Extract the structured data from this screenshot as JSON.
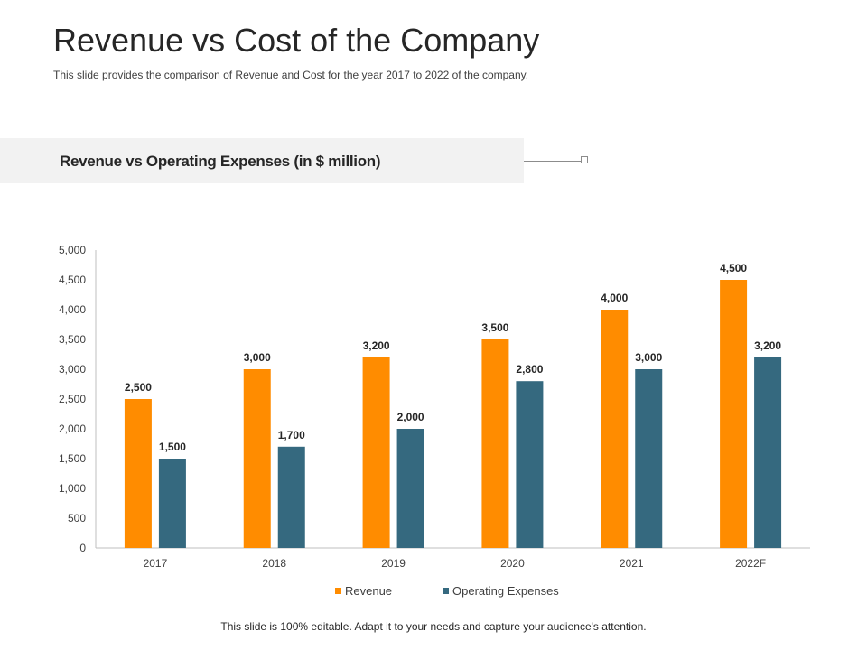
{
  "slide": {
    "title": "Revenue vs Cost of the Company",
    "subtitle": "This slide provides  the comparison of Revenue  and Cost for the year 2017 to 2022 of the company.",
    "footer": "This slide is 100% editable. Adapt it to your needs and capture your audience's attention."
  },
  "banner": {
    "title": "Revenue vs Operating Expenses (in $ million)",
    "background": "#f2f2f2"
  },
  "chart_data": {
    "type": "bar",
    "title": "Revenue vs Operating Expenses (in $ million)",
    "categories": [
      "2017",
      "2018",
      "2019",
      "2020",
      "2021",
      "2022F"
    ],
    "series": [
      {
        "name": "Revenue",
        "color": "#ff8c00",
        "values": [
          2500,
          3000,
          3200,
          3500,
          4000,
          4500
        ]
      },
      {
        "name": "Operating Expenses",
        "color": "#35697f",
        "values": [
          1500,
          1700,
          2000,
          2800,
          3000,
          3200
        ]
      }
    ],
    "yticks": [
      0,
      500,
      1000,
      1500,
      2000,
      2500,
      3000,
      3500,
      4000,
      4500,
      5000
    ],
    "ylim": [
      0,
      5000
    ],
    "xlabel": "",
    "ylabel": "",
    "grid": false,
    "legend": "bottom",
    "data_labels": true
  }
}
